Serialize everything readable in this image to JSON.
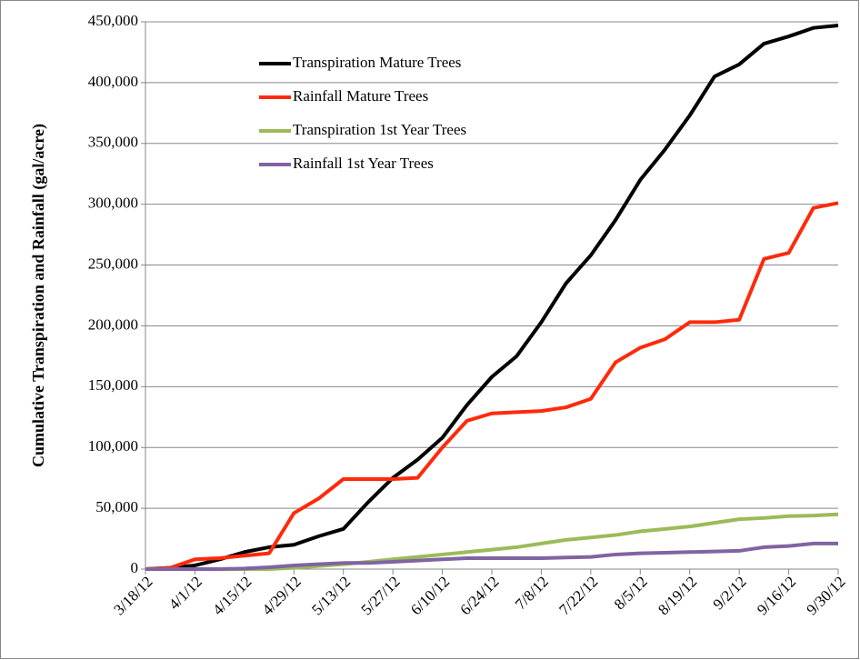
{
  "chart_data": {
    "type": "line",
    "y_label": "Cumulative Transpiration and Rainfall (gal/acre)",
    "categories": [
      "3/18/12",
      null,
      "4/1/12",
      null,
      "4/15/12",
      null,
      "4/29/12",
      null,
      "5/13/12",
      null,
      "5/27/12",
      null,
      "6/10/12",
      null,
      "6/24/12",
      null,
      "7/8/12",
      null,
      "7/22/12",
      null,
      "8/5/12",
      null,
      "8/19/12",
      null,
      "9/2/12",
      null,
      "9/16/12",
      null,
      "9/30/12"
    ],
    "series": [
      {
        "name": "Transpiration Mature Trees",
        "color": "#000000",
        "values": [
          0,
          1000,
          3000,
          8000,
          14000,
          18000,
          20000,
          27000,
          33000,
          55000,
          75000,
          90000,
          108000,
          135000,
          158000,
          175000,
          203000,
          235000,
          258000,
          287000,
          320000,
          345000,
          373000,
          405000,
          415000,
          432000,
          438000,
          445000,
          447000
        ]
      },
      {
        "name": "Rainfall Mature Trees",
        "color": "#ff2a0a",
        "values": [
          0,
          1000,
          8000,
          9000,
          11000,
          13000,
          46000,
          58000,
          74000,
          74000,
          74000,
          75000,
          100000,
          122000,
          128000,
          129000,
          130000,
          133000,
          140000,
          170000,
          182000,
          189000,
          203000,
          203000,
          205000,
          255000,
          260000,
          297000,
          301000
        ]
      },
      {
        "name": "Transpiration 1st Year Trees",
        "color": "#9bbb59",
        "values": [
          0,
          0,
          0,
          0,
          0,
          0,
          1000,
          2500,
          4000,
          6000,
          8000,
          10000,
          12000,
          14000,
          16000,
          18000,
          21000,
          24000,
          26000,
          28000,
          31000,
          33000,
          35000,
          38000,
          41000,
          42000,
          43500,
          44000,
          45000
        ]
      },
      {
        "name": "Rainfall 1st Year Trees",
        "color": "#8064a2",
        "values": [
          0,
          0,
          0,
          0,
          500,
          1500,
          3000,
          4000,
          5000,
          5000,
          6000,
          7000,
          8000,
          9000,
          9000,
          9000,
          9000,
          9500,
          10000,
          12000,
          13000,
          13500,
          14000,
          14500,
          15000,
          18000,
          19000,
          21000,
          21000
        ]
      }
    ],
    "ylim": [
      0,
      450000
    ],
    "yticks": [
      0,
      {
        "value": 50000,
        "label": "50,000"
      },
      {
        "value": 100000,
        "label": "100,000"
      },
      {
        "value": 150000,
        "label": "150,000"
      },
      {
        "value": 200000,
        "label": "200,000"
      },
      {
        "value": 250000,
        "label": "250,000"
      },
      {
        "value": 300000,
        "label": "300,000"
      },
      {
        "value": 350000,
        "label": "350,000"
      },
      {
        "value": 400000,
        "label": "400,000"
      },
      {
        "value": 450000,
        "label": "450,000"
      }
    ],
    "grid": true,
    "legend": "top-left"
  }
}
